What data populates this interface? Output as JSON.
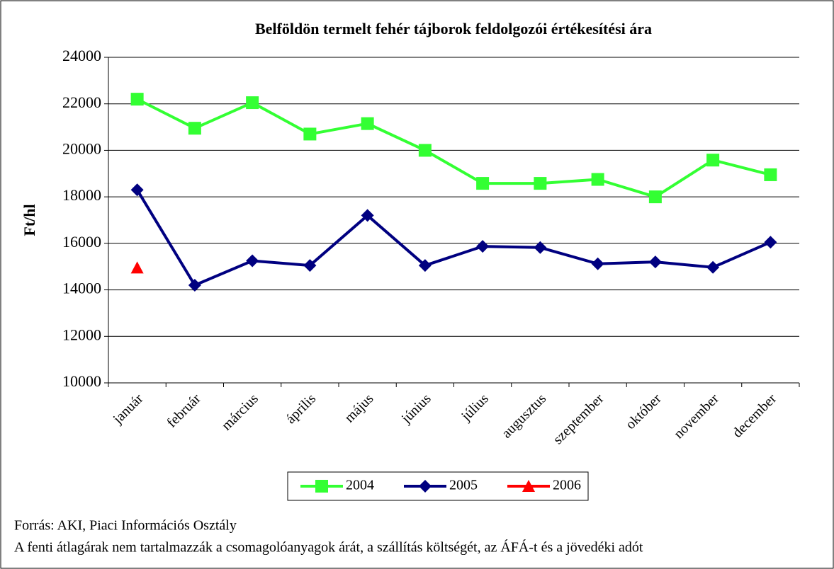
{
  "chart_data": {
    "type": "line",
    "title": "Belföldön termelt fehér tájborok feldolgozói értékesítési ára",
    "y_label": "Ft/hl",
    "categories": [
      "január",
      "február",
      "március",
      "április",
      "május",
      "június",
      "július",
      "augusztus",
      "szeptember",
      "október",
      "november",
      "december"
    ],
    "series": [
      {
        "name": "2004",
        "color": "#33ff33",
        "marker": "square",
        "values": [
          22200,
          20950,
          22050,
          20700,
          21150,
          20000,
          18580,
          18580,
          18750,
          18000,
          19580,
          18950
        ]
      },
      {
        "name": "2005",
        "color": "#000080",
        "marker": "diamond",
        "values": [
          18300,
          14200,
          15250,
          15050,
          17200,
          15050,
          15870,
          15820,
          15120,
          15200,
          14970,
          16050
        ]
      },
      {
        "name": "2006",
        "color": "#ff0000",
        "marker": "triangle",
        "values": [
          14950,
          null,
          null,
          null,
          null,
          null,
          null,
          null,
          null,
          null,
          null,
          null
        ]
      }
    ],
    "ylim": [
      10000,
      24000
    ],
    "yticks": [
      10000,
      12000,
      14000,
      16000,
      18000,
      20000,
      22000,
      24000
    ],
    "grid": true,
    "legend": "bottom",
    "notes": [
      "Forrás: AKI, Piaci Információs Osztály",
      "A fenti átlagárak nem tartalmazzák a csomagolóanyagok árát, a szállítás költségét, az ÁFÁ-t és a jövedéki adót"
    ]
  }
}
